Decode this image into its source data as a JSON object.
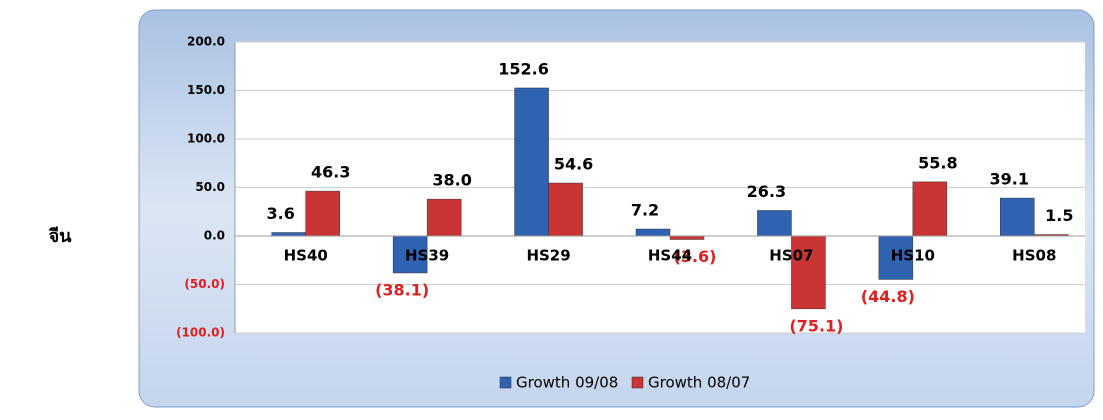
{
  "row_label": "จีน",
  "chart_data": {
    "type": "bar",
    "categories": [
      "HS40",
      "HS39",
      "HS29",
      "HS44",
      "HS07",
      "HS10",
      "HS08"
    ],
    "series": [
      {
        "name": "Growth 09/08",
        "color": "#2f62b0",
        "values": [
          3.6,
          -38.1,
          152.6,
          7.2,
          26.3,
          -44.8,
          39.1
        ],
        "value_labels": [
          "3.6",
          "(38.1)",
          "152.6",
          "7.2",
          "26.3",
          "(44.8)",
          "39.1"
        ]
      },
      {
        "name": "Growth 08/07",
        "color": "#c93535",
        "values": [
          46.3,
          38.0,
          54.6,
          -3.6,
          -75.1,
          55.8,
          1.5
        ],
        "value_labels": [
          "46.3",
          "38.0",
          "54.6",
          "(3.6)",
          "(75.1)",
          "55.8",
          "1.5"
        ]
      }
    ],
    "ylim": [
      -100,
      200
    ],
    "yticks": [
      {
        "value": -100,
        "label": "(100.0)"
      },
      {
        "value": -50,
        "label": "(50.0)"
      },
      {
        "value": 0,
        "label": "0.0"
      },
      {
        "value": 50,
        "label": "50.0"
      },
      {
        "value": 100,
        "label": "100.0"
      },
      {
        "value": 150,
        "label": "150.0"
      },
      {
        "value": 200,
        "label": "200.0"
      }
    ],
    "grid": true,
    "legend": "bottom"
  }
}
